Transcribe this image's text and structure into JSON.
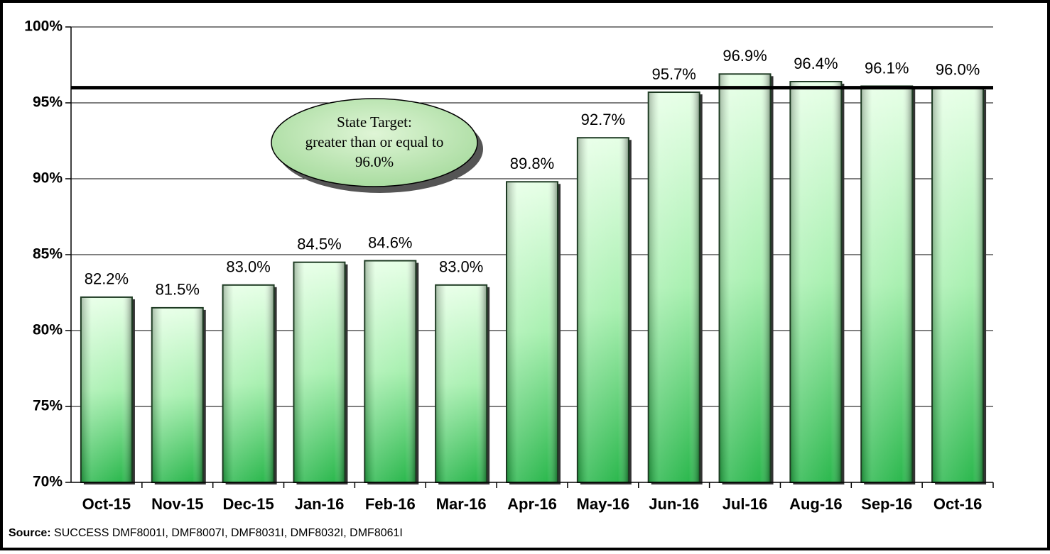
{
  "chart_data": {
    "type": "bar",
    "categories": [
      "Oct-15",
      "Nov-15",
      "Dec-15",
      "Jan-16",
      "Feb-16",
      "Mar-16",
      "Apr-16",
      "May-16",
      "Jun-16",
      "Jul-16",
      "Aug-16",
      "Sep-16",
      "Oct-16"
    ],
    "values": [
      82.2,
      81.5,
      83.0,
      84.5,
      84.6,
      83.0,
      89.8,
      92.7,
      95.7,
      96.9,
      96.4,
      96.1,
      96.0
    ],
    "value_labels": [
      "82.2%",
      "81.5%",
      "83.0%",
      "84.5%",
      "84.6%",
      "83.0%",
      "89.8%",
      "92.7%",
      "95.7%",
      "96.9%",
      "96.4%",
      "96.1%",
      "96.0%"
    ],
    "color": "#5fd37a",
    "ylim": [
      70,
      100
    ],
    "yticks": [
      {
        "value": 70,
        "label": "70%"
      },
      {
        "value": 75,
        "label": "75%"
      },
      {
        "value": 80,
        "label": "80%"
      },
      {
        "value": 85,
        "label": "85%"
      },
      {
        "value": 90,
        "label": "90%"
      },
      {
        "value": 95,
        "label": "95%"
      },
      {
        "value": 100,
        "label": "100%"
      }
    ],
    "grid": true,
    "target": 96.0,
    "annotation": [
      "State Target:",
      "greater than or equal to",
      "96.0%"
    ],
    "source_label": "Source:",
    "source": "SUCCESS DMF8001I, DMF8007I, DMF8031I, DMF8032I, DMF8061I"
  }
}
